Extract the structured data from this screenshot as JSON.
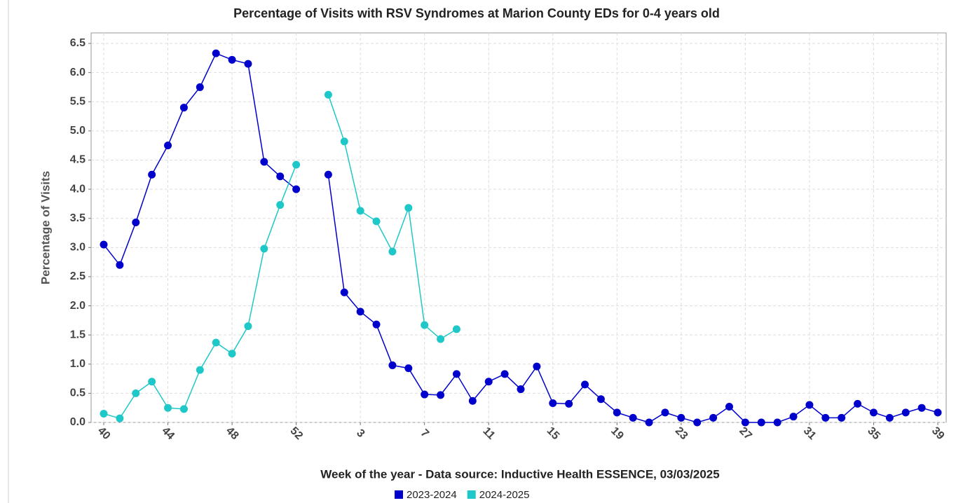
{
  "chart_data": {
    "type": "line",
    "title": "Percentage of Visits with RSV Syndromes at Marion County EDs for 0-4 years old",
    "x_label": "Week of the year - Data source: Inductive Health ESSENCE, 03/03/2025",
    "y_label": "Percentage of Visits",
    "categories": [
      "40",
      null,
      null,
      null,
      "44",
      null,
      null,
      null,
      "48",
      null,
      null,
      null,
      "52",
      null,
      null,
      null,
      "3",
      null,
      null,
      null,
      "7",
      null,
      null,
      null,
      "11",
      null,
      null,
      null,
      "15",
      null,
      null,
      null,
      "19",
      null,
      null,
      null,
      "23",
      null,
      null,
      null,
      "27",
      null,
      null,
      null,
      "31",
      null,
      null,
      null,
      "35",
      null,
      null,
      null,
      "39"
    ],
    "series": [
      {
        "name": "2023-2024",
        "color": "#0000cc",
        "values": [
          3.05,
          2.7,
          3.43,
          4.25,
          4.75,
          5.4,
          5.75,
          6.33,
          6.22,
          6.15,
          4.47,
          4.22,
          4.0,
          null,
          4.25,
          2.23,
          1.9,
          1.68,
          0.98,
          0.93,
          0.48,
          0.47,
          0.83,
          0.37,
          0.7,
          0.83,
          0.57,
          0.96,
          0.33,
          0.32,
          0.65,
          0.4,
          0.17,
          0.08,
          0.0,
          0.17,
          0.08,
          0.0,
          0.08,
          0.27,
          0.0,
          0.0,
          0.0,
          0.1,
          0.3,
          0.08,
          0.08,
          0.32,
          0.17,
          0.08,
          0.17,
          0.25,
          0.17
        ]
      },
      {
        "name": "2024-2025",
        "color": "#1ec8c8",
        "values": [
          0.15,
          0.07,
          0.5,
          0.7,
          0.25,
          0.23,
          0.9,
          1.37,
          1.18,
          1.65,
          2.98,
          3.73,
          4.42,
          null,
          5.62,
          4.82,
          3.63,
          3.45,
          2.93,
          3.68,
          1.67,
          1.43,
          1.6,
          null,
          null,
          null,
          null,
          null,
          null,
          null,
          null,
          null,
          null,
          null,
          null,
          null,
          null,
          null,
          null,
          null,
          null,
          null,
          null,
          null,
          null,
          null,
          null,
          null,
          null,
          null,
          null,
          null,
          null
        ]
      }
    ],
    "ylim": [
      0,
      6.5
    ],
    "yticks": [
      {
        "value": 0,
        "label": "0.0"
      },
      0.5,
      {
        "value": 1,
        "label": "1.0"
      },
      1.5,
      {
        "value": 2,
        "label": "2.0"
      },
      2.5,
      {
        "value": 3,
        "label": "3.0"
      },
      3.5,
      {
        "value": 4,
        "label": "4.0"
      },
      4.5,
      {
        "value": 5,
        "label": "5.0"
      },
      5.5,
      {
        "value": 6,
        "label": "6.0"
      },
      6.5
    ],
    "grid": true
  }
}
